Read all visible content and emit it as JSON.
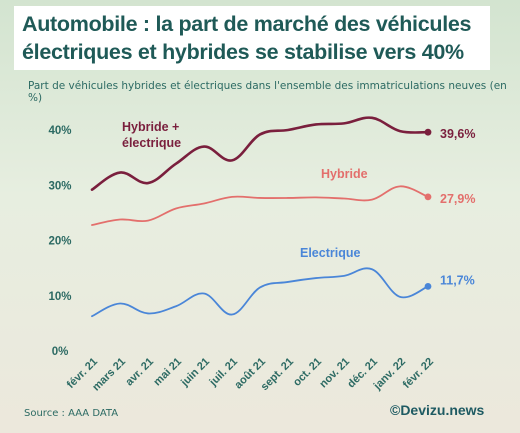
{
  "header": {
    "title_line1": "Automobile : la part de marché des véhicules",
    "title_line2": "électriques et hybrides se stabilise vers 40%",
    "subtitle": "Part de véhicules hybrides et électriques dans l'ensemble des immatriculations neuves (en %)"
  },
  "footer": {
    "source": "Source : AAA DATA",
    "credit": "©Devizu.news"
  },
  "colors": {
    "hybride_electrique": "#7a1f3d",
    "hybride": "#e36f6c",
    "electrique": "#4a86d8"
  },
  "chart_data": {
    "type": "line",
    "title": "Automobile : la part de marché des véhicules électriques et hybrides se stabilise vers 40%",
    "subtitle": "Part de véhicules hybrides et électriques dans l'ensemble des immatriculations neuves (en %)",
    "x": [
      "févr. 21",
      "mars 21",
      "avr. 21",
      "mai 21",
      "juin 21",
      "juil. 21",
      "août 21",
      "sept. 21",
      "oct. 21",
      "nov. 21",
      "déc. 21",
      "janv. 22",
      "févr. 22"
    ],
    "y_ticks": [
      "0%",
      "10%",
      "20%",
      "30%",
      "40%"
    ],
    "ylim": [
      0,
      40
    ],
    "grid": false,
    "series": [
      {
        "name": "Hybride + électrique",
        "label_lines": [
          "Hybride +",
          "électrique"
        ],
        "color": "#7a1f3d",
        "values": [
          29.2,
          32.3,
          30.4,
          33.9,
          37.0,
          34.5,
          39.2,
          40.0,
          41.0,
          41.2,
          42.2,
          39.8,
          39.6
        ],
        "end_label": "39,6%"
      },
      {
        "name": "Hybride",
        "label_lines": [
          "Hybride"
        ],
        "color": "#e36f6c",
        "values": [
          22.8,
          23.8,
          23.6,
          25.8,
          26.7,
          27.9,
          27.7,
          27.7,
          27.8,
          27.6,
          27.4,
          29.8,
          27.9
        ],
        "end_label": "27,9%"
      },
      {
        "name": "Electrique",
        "label_lines": [
          "Electrique"
        ],
        "color": "#4a86d8",
        "values": [
          6.3,
          8.6,
          6.8,
          8.1,
          10.4,
          6.6,
          11.5,
          12.5,
          13.2,
          13.6,
          14.8,
          9.8,
          11.7
        ],
        "end_label": "11,7%"
      }
    ]
  }
}
